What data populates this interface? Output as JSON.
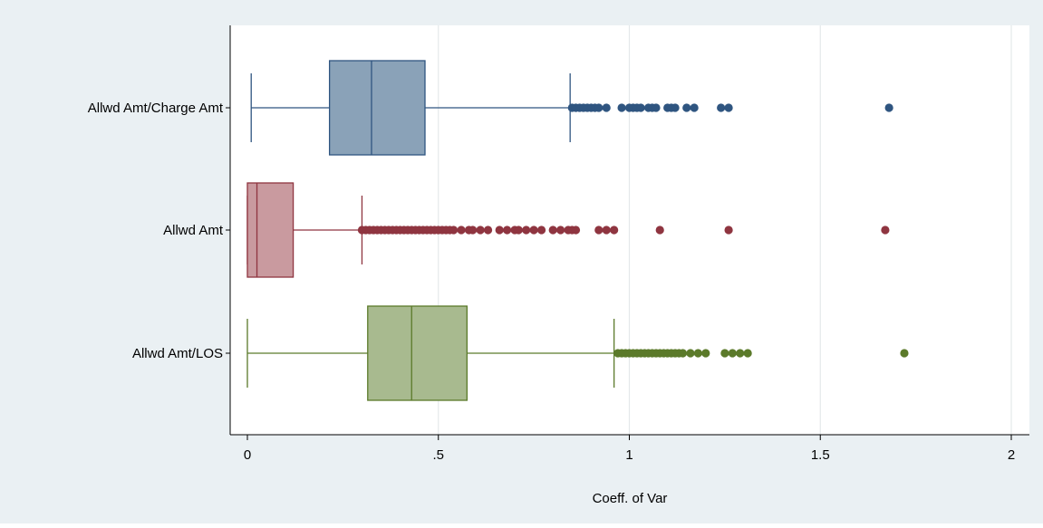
{
  "chart_data": {
    "type": "boxplot",
    "orientation": "horizontal",
    "xlabel": "Coeff. of Var",
    "xlim": [
      0,
      2
    ],
    "xticks": [
      {
        "value": 0,
        "label": "0"
      },
      {
        "value": 0.5,
        "label": ".5"
      },
      {
        "value": 1,
        "label": "1"
      },
      {
        "value": 1.5,
        "label": "1.5"
      },
      {
        "value": 2,
        "label": "2"
      }
    ],
    "grid": "vertical",
    "series": [
      {
        "name": "Allwd Amt/Charge Amt",
        "color": "#2f5580",
        "fill": "#8aa2b8",
        "whisker_low": 0.01,
        "q1": 0.215,
        "median": 0.325,
        "q3": 0.465,
        "whisker_high": 0.845,
        "outliers": [
          0.85,
          0.86,
          0.87,
          0.88,
          0.89,
          0.9,
          0.91,
          0.92,
          0.94,
          0.98,
          1.0,
          1.01,
          1.02,
          1.03,
          1.05,
          1.06,
          1.07,
          1.1,
          1.11,
          1.12,
          1.15,
          1.17,
          1.24,
          1.26,
          1.68
        ]
      },
      {
        "name": "Allwd Amt",
        "color": "#8f3540",
        "fill": "#c99a9f",
        "whisker_low": 0.0,
        "q1": 0.0,
        "median": 0.025,
        "q3": 0.12,
        "whisker_high": 0.3,
        "outliers": [
          0.3,
          0.31,
          0.32,
          0.33,
          0.34,
          0.35,
          0.36,
          0.37,
          0.38,
          0.39,
          0.4,
          0.41,
          0.42,
          0.43,
          0.44,
          0.45,
          0.46,
          0.47,
          0.48,
          0.49,
          0.5,
          0.51,
          0.52,
          0.53,
          0.54,
          0.56,
          0.58,
          0.59,
          0.61,
          0.63,
          0.66,
          0.68,
          0.7,
          0.71,
          0.73,
          0.75,
          0.77,
          0.8,
          0.82,
          0.84,
          0.85,
          0.86,
          0.92,
          0.94,
          0.96,
          1.08,
          1.26,
          1.67
        ]
      },
      {
        "name": "Allwd Amt/LOS",
        "color": "#5b7a2a",
        "fill": "#a8ba8f",
        "whisker_low": 0.0,
        "q1": 0.315,
        "median": 0.43,
        "q3": 0.575,
        "whisker_high": 0.96,
        "outliers": [
          0.97,
          0.98,
          0.99,
          1.0,
          1.01,
          1.02,
          1.03,
          1.04,
          1.05,
          1.06,
          1.07,
          1.08,
          1.09,
          1.1,
          1.11,
          1.12,
          1.13,
          1.14,
          1.16,
          1.18,
          1.2,
          1.25,
          1.27,
          1.29,
          1.31,
          1.72
        ]
      }
    ]
  }
}
